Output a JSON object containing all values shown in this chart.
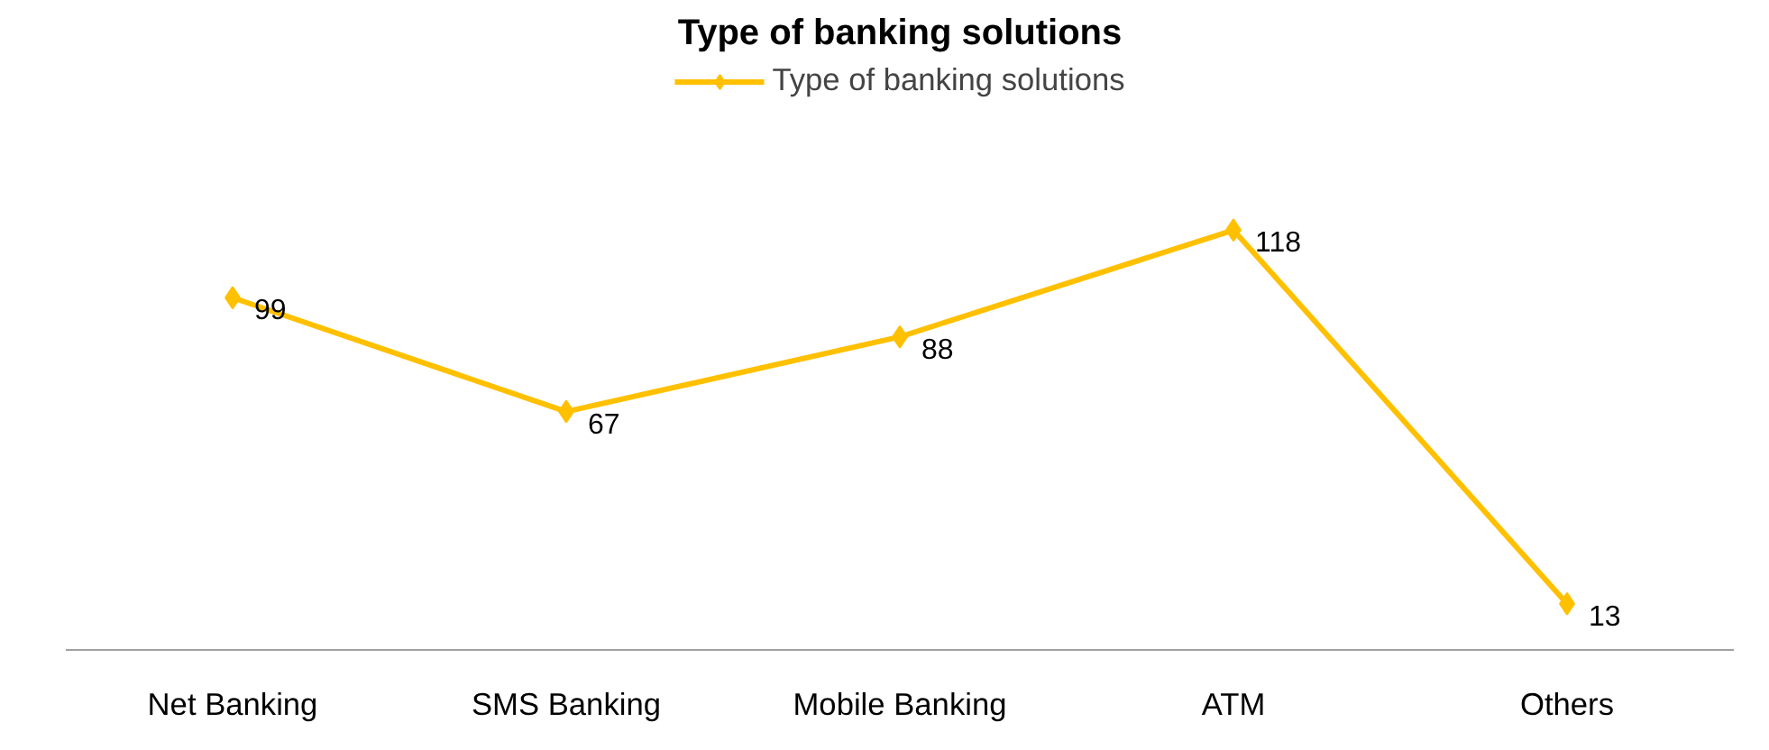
{
  "chart_data": {
    "type": "line",
    "title": "Type of banking solutions",
    "categories": [
      "Net Banking",
      "SMS Banking",
      "Mobile Banking",
      "ATM",
      "Others"
    ],
    "series": [
      {
        "name": "Type of banking solutions",
        "color": "#ffc000",
        "values": [
          99,
          67,
          88,
          118,
          13
        ]
      }
    ],
    "data_labels": true,
    "marker": "diamond",
    "line_style": "solid",
    "legend": "top",
    "grid": false,
    "tick_labels": "x"
  }
}
